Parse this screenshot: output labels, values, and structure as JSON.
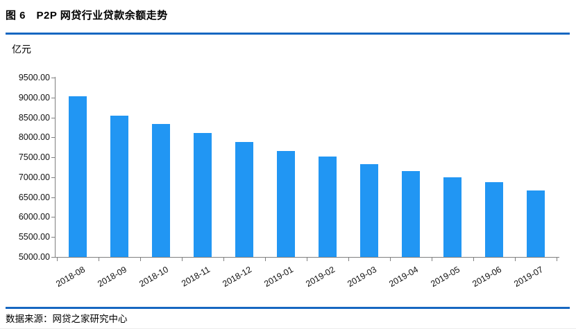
{
  "figure": {
    "title": "图 6　P2P 网贷行业贷款余额走势",
    "source": "数据来源：网贷之家研究中心"
  },
  "chart_data": {
    "type": "bar",
    "title": "P2P 网贷行业贷款余额走势",
    "unit_label": "亿元",
    "categories": [
      "2018-08",
      "2018-09",
      "2018-10",
      "2018-11",
      "2018-12",
      "2019-01",
      "2019-02",
      "2019-03",
      "2019-04",
      "2019-05",
      "2019-06",
      "2019-07"
    ],
    "values": [
      9033,
      8536,
      8331,
      8114,
      7890,
      7655,
      7520,
      7328,
      7163,
      6996,
      6880,
      6660
    ],
    "ylim": [
      5000,
      9500
    ],
    "ytick_step": 500,
    "ytick_decimals": 2,
    "xlabel": "",
    "ylabel": "亿元",
    "grid": false,
    "legend": "none",
    "bar_color": "#2196F3",
    "axis_color": "#7f7f7f",
    "accent_rule_color": "#1667C1"
  }
}
